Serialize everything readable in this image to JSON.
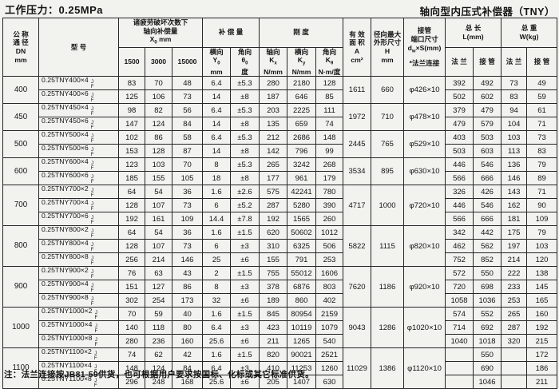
{
  "page": {
    "pressure_title": "工作压力：0.25MPa",
    "product_title": "轴向型内压式补偿器（TNY）",
    "footnote": "注：法兰连接按JB81-59供货，也可根据用户要求按国标、化标或其它标准供货。"
  },
  "colors": {
    "paper": "#f2f2ef",
    "border": "#262626",
    "text": "#141414"
  },
  "table": {
    "connector_mark": {
      "top": "J",
      "bottom": "F"
    },
    "headers": {
      "dn_lines": [
        "公 称",
        "通 径",
        "DN",
        "mm"
      ],
      "model": "型  号",
      "fatigue_lines": [
        "诸疲劳破坏次数下",
        "轴向补偿量"
      ],
      "fatigue_sym": "X",
      "fatigue_sub": "0",
      "fatigue_rest": "  mm",
      "compensation": "补 偿 量",
      "stiffness": "刚 度",
      "area_lines": [
        "有 效",
        "面 积",
        "A",
        "cm²"
      ],
      "radial_lines": [
        "径向最大",
        "外形尺寸",
        "H",
        "mm"
      ],
      "pipe_line1": "接管",
      "pipe_line2": "端口尺寸",
      "pipe_sym": "d",
      "pipe_sub": "w",
      "pipe_rest": "×S(mm)",
      "pipe_note": "*法兰连接",
      "total_length_lines": [
        "总 长",
        "L(mm)"
      ],
      "total_weight_lines": [
        "总 重",
        "W(kg)"
      ],
      "sub_1500": "1500",
      "sub_3000": "3000",
      "sub_15000": "15000",
      "lateral_comp": {
        "dir": "横向",
        "sym": "Y",
        "sub": "0",
        "unit": "mm"
      },
      "angular_comp": {
        "dir": "角向",
        "sym": "θ",
        "sub": "0",
        "unit": "度"
      },
      "axial_k": {
        "dir": "轴向",
        "sym": "K",
        "sub": "x",
        "unit": "N/mm"
      },
      "lateral_k": {
        "dir": "横向",
        "sym": "K",
        "sub": "y",
        "unit": "N/mm"
      },
      "angular_k": {
        "dir": "角向",
        "sym": "K",
        "sub": "θ",
        "unit": "N·m/度"
      },
      "flange": "法 兰",
      "pipe_conn": "接 管"
    },
    "groups": [
      {
        "dn": "400",
        "area": "1611",
        "h": "660",
        "pipe": "φ426×10",
        "rows": [
          {
            "model": "0.25TNY400×4",
            "x1500": "83",
            "x3000": "70",
            "x15000": "48",
            "y0": "6.4",
            "theta": "±5.3",
            "kx": "280",
            "ky": "2180",
            "ktheta": "128",
            "l_flange": "392",
            "l_pipe": "492",
            "w_flange": "73",
            "w_pipe": "49"
          },
          {
            "model": "0.25TNY400×6",
            "x1500": "125",
            "x3000": "106",
            "x15000": "73",
            "y0": "14",
            "theta": "±8",
            "kx": "187",
            "ky": "646",
            "ktheta": "85",
            "l_flange": "502",
            "l_pipe": "602",
            "w_flange": "83",
            "w_pipe": "59"
          }
        ]
      },
      {
        "dn": "450",
        "area": "1972",
        "h": "710",
        "pipe": "φ478×10",
        "rows": [
          {
            "model": "0.25TNY450×4",
            "x1500": "98",
            "x3000": "82",
            "x15000": "56",
            "y0": "6.4",
            "theta": "±5.3",
            "kx": "203",
            "ky": "2225",
            "ktheta": "111",
            "l_flange": "379",
            "l_pipe": "479",
            "w_flange": "94",
            "w_pipe": "61"
          },
          {
            "model": "0.25TNY450×6",
            "x1500": "147",
            "x3000": "124",
            "x15000": "84",
            "y0": "14",
            "theta": "±8",
            "kx": "135",
            "ky": "659",
            "ktheta": "74",
            "l_flange": "479",
            "l_pipe": "579",
            "w_flange": "104",
            "w_pipe": "71"
          }
        ]
      },
      {
        "dn": "500",
        "area": "2445",
        "h": "765",
        "pipe": "φ529×10",
        "rows": [
          {
            "model": "0.25TNY500×4",
            "x1500": "102",
            "x3000": "86",
            "x15000": "58",
            "y0": "6.4",
            "theta": "±5.3",
            "kx": "212",
            "ky": "2686",
            "ktheta": "148",
            "l_flange": "403",
            "l_pipe": "503",
            "w_flange": "103",
            "w_pipe": "73"
          },
          {
            "model": "0.25TNY500×6",
            "x1500": "153",
            "x3000": "128",
            "x15000": "87",
            "y0": "14",
            "theta": "±8",
            "kx": "142",
            "ky": "796",
            "ktheta": "99",
            "l_flange": "503",
            "l_pipe": "603",
            "w_flange": "113",
            "w_pipe": "83"
          }
        ]
      },
      {
        "dn": "600",
        "area": "3534",
        "h": "895",
        "pipe": "φ630×10",
        "rows": [
          {
            "model": "0.25TNY600×4",
            "x1500": "123",
            "x3000": "103",
            "x15000": "70",
            "y0": "8",
            "theta": "±5.3",
            "kx": "265",
            "ky": "3242",
            "ktheta": "268",
            "l_flange": "446",
            "l_pipe": "546",
            "w_flange": "136",
            "w_pipe": "79"
          },
          {
            "model": "0.25TNY600×6",
            "x1500": "185",
            "x3000": "155",
            "x15000": "105",
            "y0": "18",
            "theta": "±8",
            "kx": "177",
            "ky": "961",
            "ktheta": "179",
            "l_flange": "566",
            "l_pipe": "666",
            "w_flange": "146",
            "w_pipe": "89"
          }
        ]
      },
      {
        "dn": "700",
        "area": "4717",
        "h": "1000",
        "pipe": "φ720×10",
        "rows": [
          {
            "model": "0.25TNY700×2",
            "x1500": "64",
            "x3000": "54",
            "x15000": "36",
            "y0": "1.6",
            "theta": "±2.6",
            "kx": "575",
            "ky": "42241",
            "ktheta": "780",
            "l_flange": "326",
            "l_pipe": "426",
            "w_flange": "143",
            "w_pipe": "71"
          },
          {
            "model": "0.25TNY700×4",
            "x1500": "128",
            "x3000": "107",
            "x15000": "73",
            "y0": "6",
            "theta": "±5.2",
            "kx": "287",
            "ky": "5280",
            "ktheta": "390",
            "l_flange": "446",
            "l_pipe": "546",
            "w_flange": "162",
            "w_pipe": "90"
          },
          {
            "model": "0.25TNY700×6",
            "x1500": "192",
            "x3000": "161",
            "x15000": "109",
            "y0": "14.4",
            "theta": "±7.8",
            "kx": "192",
            "ky": "1565",
            "ktheta": "260",
            "l_flange": "566",
            "l_pipe": "666",
            "w_flange": "181",
            "w_pipe": "109"
          }
        ]
      },
      {
        "dn": "800",
        "area": "5822",
        "h": "1115",
        "pipe": "φ820×10",
        "rows": [
          {
            "model": "0.25TNY800×2",
            "x1500": "64",
            "x3000": "54",
            "x15000": "36",
            "y0": "1.6",
            "theta": "±1.5",
            "kx": "620",
            "ky": "50602",
            "ktheta": "1012",
            "l_flange": "342",
            "l_pipe": "442",
            "w_flange": "175",
            "w_pipe": "79"
          },
          {
            "model": "0.25TNY800×4",
            "x1500": "128",
            "x3000": "107",
            "x15000": "73",
            "y0": "6",
            "theta": "±3",
            "kx": "310",
            "ky": "6325",
            "ktheta": "506",
            "l_flange": "462",
            "l_pipe": "562",
            "w_flange": "197",
            "w_pipe": "103"
          },
          {
            "model": "0.25TNY800×8",
            "x1500": "256",
            "x3000": "214",
            "x15000": "146",
            "y0": "25",
            "theta": "±6",
            "kx": "155",
            "ky": "791",
            "ktheta": "253",
            "l_flange": "752",
            "l_pipe": "852",
            "w_flange": "214",
            "w_pipe": "120"
          }
        ]
      },
      {
        "dn": "900",
        "area": "7620",
        "h": "1186",
        "pipe": "φ920×10",
        "rows": [
          {
            "model": "0.25TNY900×2",
            "x1500": "76",
            "x3000": "63",
            "x15000": "43",
            "y0": "2",
            "theta": "±1.5",
            "kx": "755",
            "ky": "55012",
            "ktheta": "1606",
            "l_flange": "572",
            "l_pipe": "550",
            "w_flange": "222",
            "w_pipe": "138"
          },
          {
            "model": "0.25TNY900×4",
            "x1500": "151",
            "x3000": "127",
            "x15000": "86",
            "y0": "8",
            "theta": "±3",
            "kx": "378",
            "ky": "6876",
            "ktheta": "803",
            "l_flange": "720",
            "l_pipe": "698",
            "w_flange": "233",
            "w_pipe": "145"
          },
          {
            "model": "0.25TNY900×8",
            "x1500": "302",
            "x3000": "254",
            "x15000": "173",
            "y0": "32",
            "theta": "±6",
            "kx": "189",
            "ky": "860",
            "ktheta": "402",
            "l_flange": "1058",
            "l_pipe": "1036",
            "w_flange": "253",
            "w_pipe": "165"
          }
        ]
      },
      {
        "dn": "1000",
        "area": "9043",
        "h": "1286",
        "pipe": "φ1020×10",
        "rows": [
          {
            "model": "0.25TNY1000×2",
            "x1500": "70",
            "x3000": "59",
            "x15000": "40",
            "y0": "1.6",
            "theta": "±1.5",
            "kx": "845",
            "ky": "80954",
            "ktheta": "2159",
            "l_flange": "574",
            "l_pipe": "552",
            "w_flange": "265",
            "w_pipe": "160"
          },
          {
            "model": "0.25TNY1000×4",
            "x1500": "140",
            "x3000": "118",
            "x15000": "80",
            "y0": "6.4",
            "theta": "±3",
            "kx": "423",
            "ky": "10119",
            "ktheta": "1079",
            "l_flange": "714",
            "l_pipe": "692",
            "w_flange": "287",
            "w_pipe": "192"
          },
          {
            "model": "0.25TNY1000×8",
            "x1500": "280",
            "x3000": "236",
            "x15000": "160",
            "y0": "25.6",
            "theta": "±6",
            "kx": "211",
            "ky": "1265",
            "ktheta": "540",
            "l_flange": "1040",
            "l_pipe": "1018",
            "w_flange": "320",
            "w_pipe": "215"
          }
        ]
      },
      {
        "dn": "1100",
        "area": "11029",
        "h": "1386",
        "pipe": "φ1120×10",
        "rows": [
          {
            "model": "0.25TNY1100×2",
            "x1500": "74",
            "x3000": "62",
            "x15000": "42",
            "y0": "1.6",
            "theta": "±1.5",
            "kx": "820",
            "ky": "90021",
            "ktheta": "2521",
            "l_flange": "",
            "l_pipe": "550",
            "w_flange": "",
            "w_pipe": "172"
          },
          {
            "model": "0.25TNY1100×4",
            "x1500": "148",
            "x3000": "124",
            "x15000": "84",
            "y0": "6.4",
            "theta": "±3",
            "kx": "410",
            "ky": "11253",
            "ktheta": "1260",
            "l_flange": "",
            "l_pipe": "690",
            "w_flange": "",
            "w_pipe": "186"
          },
          {
            "model": "0.25TNY1100×8",
            "x1500": "296",
            "x3000": "248",
            "x15000": "168",
            "y0": "25.6",
            "theta": "±6",
            "kx": "205",
            "ky": "1407",
            "ktheta": "630",
            "l_flange": "",
            "l_pipe": "1046",
            "w_flange": "",
            "w_pipe": "211"
          }
        ]
      }
    ]
  }
}
